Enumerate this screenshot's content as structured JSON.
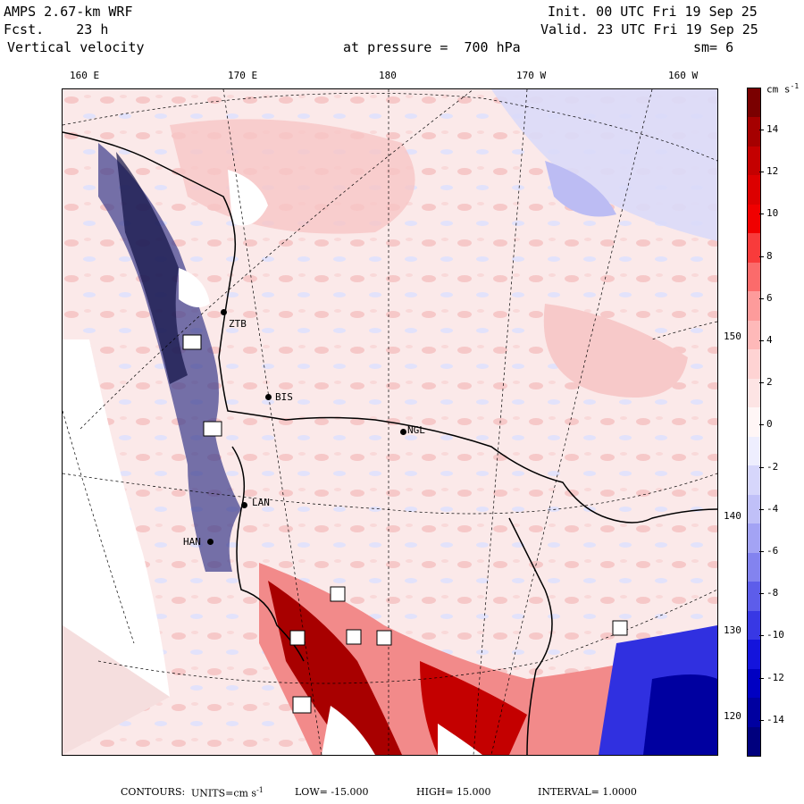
{
  "header": {
    "model": "AMPS 2.67-km WRF",
    "forecast": "Fcst.    23 h",
    "field": "Vertical velocity",
    "init": "Init. 00 UTC Fri 19 Sep 25",
    "valid": "Valid. 23 UTC Fri 19 Sep 25",
    "level": "at pressure =  700 hPa",
    "smoothing": "sm= 6"
  },
  "longitude_labels": [
    "160 E",
    "170 E",
    "180",
    "170 W",
    "160 W"
  ],
  "latitude_labels": [
    "150 W",
    "140 W",
    "130 W",
    "120 W"
  ],
  "colorbar": {
    "units_label": "cm s",
    "units_exp": "-1",
    "ticks": [
      "14",
      "12",
      "10",
      "8",
      "6",
      "4",
      "2",
      "0",
      "-2",
      "-4",
      "-6",
      "-8",
      "-10",
      "-12",
      "-14"
    ],
    "colors": [
      "#7a0000",
      "#a50000",
      "#c40000",
      "#dc0000",
      "#f00000",
      "#f83b3b",
      "#fb6b6b",
      "#fd9b9b",
      "#feb9b9",
      "#fed3d3",
      "#fde4e4",
      "#fff6f6",
      "#eeeefe",
      "#d6d6fb",
      "#c0c0f8",
      "#a3a3f4",
      "#8383ef",
      "#5d5dea",
      "#3838e4",
      "#1414dc",
      "#0000c2",
      "#0000a0",
      "#00007e"
    ]
  },
  "stations": [
    {
      "id": "ZTB"
    },
    {
      "id": "BIS"
    },
    {
      "id": "NGL"
    },
    {
      "id": "LAN"
    },
    {
      "id": "HAN"
    }
  ],
  "footer": {
    "contours_label": "CONTOURS:",
    "units_label": "UNITS=cm s",
    "units_exp": "-1",
    "low": "LOW= -15.000",
    "high": "HIGH=  15.000",
    "interval": "INTERVAL=   1.0000"
  }
}
